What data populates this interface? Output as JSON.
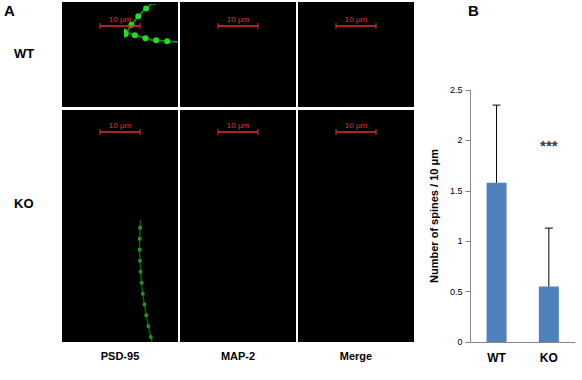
{
  "panels": {
    "a": {
      "label": "A",
      "rows": [
        "WT",
        "KO"
      ],
      "columns": [
        "PSD-95",
        "MAP-2",
        "Merge"
      ],
      "scale_bar": "10 μm"
    },
    "b": {
      "label": "B"
    }
  },
  "chart_data": {
    "type": "bar",
    "categories": [
      "WT",
      "KO"
    ],
    "values": [
      1.58,
      0.55
    ],
    "errors": [
      0.77,
      0.58
    ],
    "color": "#4f81bd",
    "y_label": "Number of spines / 10 μm",
    "ylim": [
      0,
      2.5
    ],
    "yticks": [
      0,
      0.5,
      1,
      1.5,
      2,
      2.5
    ],
    "grid": false,
    "annotations": [
      {
        "text": "***",
        "x": "KO",
        "y": 1.95
      }
    ]
  }
}
